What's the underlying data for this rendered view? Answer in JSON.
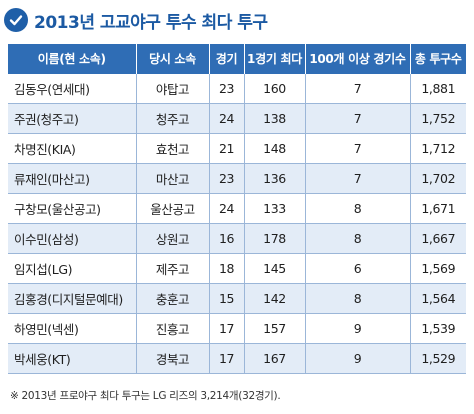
{
  "title": "2013년 고교야구 투수 최다 투구",
  "table": {
    "headers": [
      "이름(현 소속)",
      "당시 소속",
      "경기",
      "1경기 최다",
      "100개 이상 경기수",
      "총 투구수"
    ],
    "rows": [
      [
        "김동우(연세대)",
        "야탑고",
        "23",
        "160",
        "7",
        "1,881"
      ],
      [
        "주권(청주고)",
        "청주고",
        "24",
        "138",
        "7",
        "1,752"
      ],
      [
        "차명진(KIA)",
        "효천고",
        "21",
        "148",
        "7",
        "1,712"
      ],
      [
        "류재인(마산고)",
        "마산고",
        "23",
        "136",
        "7",
        "1,702"
      ],
      [
        "구창모(울산공고)",
        "울산공고",
        "24",
        "133",
        "8",
        "1,671"
      ],
      [
        "이수민(삼성)",
        "상원고",
        "16",
        "178",
        "8",
        "1,667"
      ],
      [
        "임지섭(LG)",
        "제주고",
        "18",
        "145",
        "6",
        "1,569"
      ],
      [
        "김홍경(디지털문예대)",
        "충훈고",
        "15",
        "142",
        "8",
        "1,564"
      ],
      [
        "하영민(넥센)",
        "진흥고",
        "17",
        "157",
        "9",
        "1,539"
      ],
      [
        "박세웅(KT)",
        "경북고",
        "17",
        "167",
        "9",
        "1,529"
      ]
    ]
  },
  "footnote": "※ 2013년 프로야구 최다 투구는 LG 리즈의 3,214개(32경기).",
  "colors": {
    "header_bg": "#2f6db5",
    "title": "#1c5aa3",
    "stripe": "#e3ecf7",
    "grid": "#9bb6d8"
  },
  "icons": {
    "title_icon": "check-circle-icon"
  }
}
